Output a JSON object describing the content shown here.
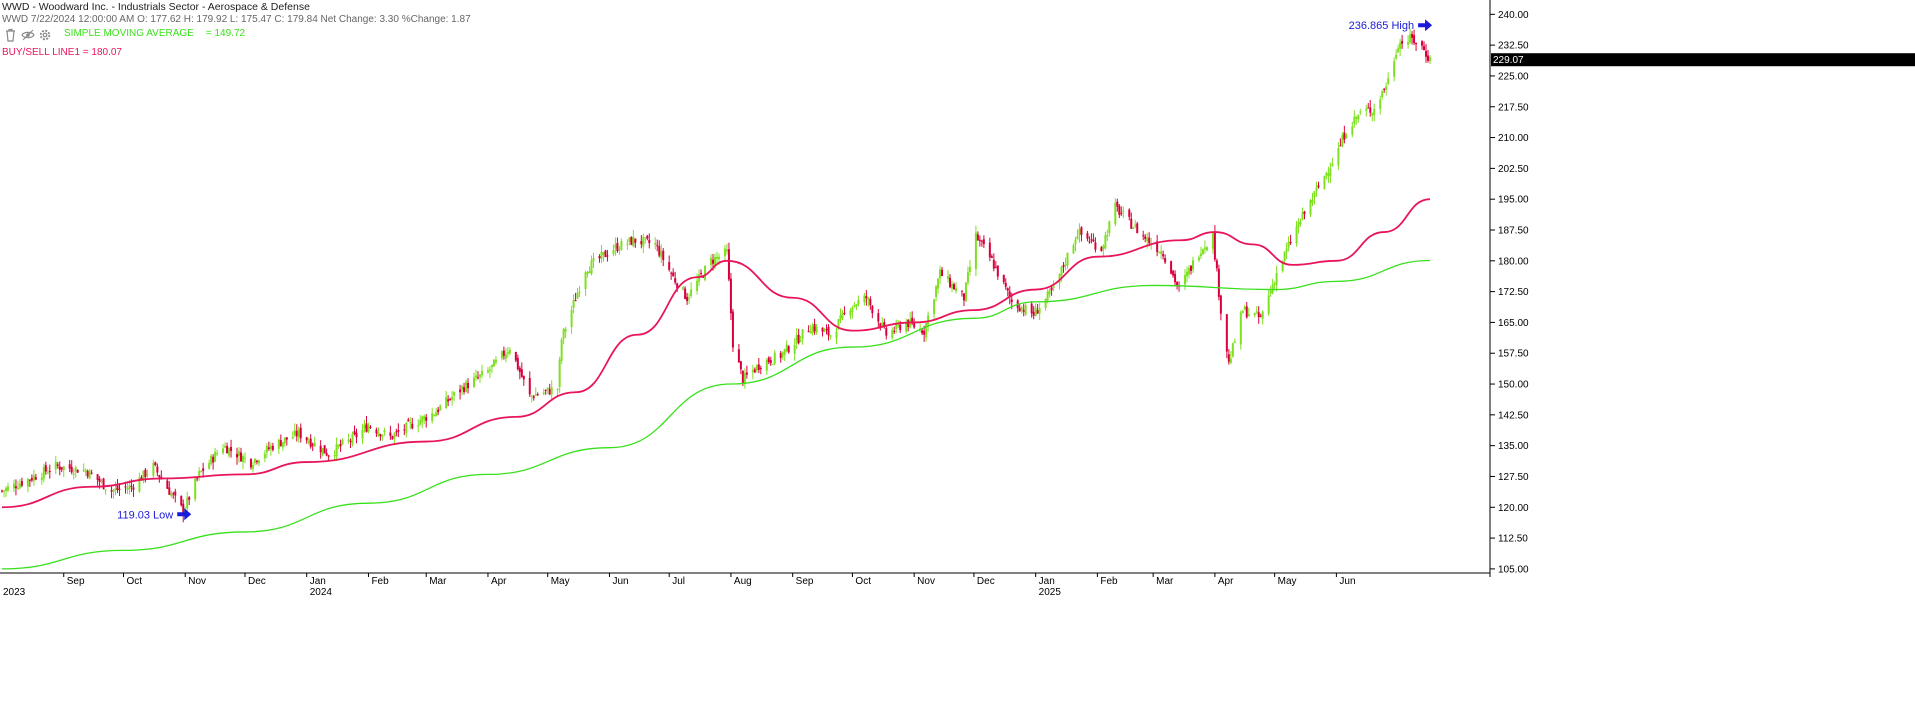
{
  "header": {
    "title": "WWD - Woodward Inc. - Industrials Sector - Aerospace & Defense",
    "ohlc_line": "WWD 7/22/2024 12:00:00 AM O: 177.62 H: 179.92 L: 175.47 C: 179.84 Net Change: 3.30  %Change: 1.87",
    "sma_label": "SIMPLE MOVING AVERAGE",
    "sma_value": "= 149.72",
    "buysell_label": "BUY/SELL LINE1 = 180.07"
  },
  "toolbar": {
    "icons": [
      "trash-icon",
      "eye-icon",
      "gear-icon"
    ]
  },
  "colors": {
    "up": "#7fe023",
    "down": "#d8003c",
    "sma_long": "#37e01b",
    "buysell": "#e8155a",
    "annotation": "#1a1ad8",
    "price_tag_bg": "#000000",
    "price_tag_fg": "#ffffff"
  },
  "chart_data": {
    "type": "candlestick",
    "ylim": [
      104,
      243
    ],
    "y_ticks": [
      "240.00",
      "232.50",
      "225.00",
      "217.50",
      "210.00",
      "202.50",
      "195.00",
      "187.50",
      "180.00",
      "172.50",
      "165.00",
      "157.50",
      "150.00",
      "142.50",
      "135.00",
      "127.50",
      "120.00",
      "112.50",
      "105.00"
    ],
    "x_ticks": [
      {
        "label": "Sep",
        "date": "2023-09-01"
      },
      {
        "label": "Oct",
        "date": "2023-10-01"
      },
      {
        "label": "Nov",
        "date": "2023-11-01"
      },
      {
        "label": "Dec",
        "date": "2023-12-01"
      },
      {
        "label": "Jan",
        "date": "2024-01-01"
      },
      {
        "label": "Feb",
        "date": "2024-02-01"
      },
      {
        "label": "Mar",
        "date": "2024-03-01"
      },
      {
        "label": "Apr",
        "date": "2024-04-01"
      },
      {
        "label": "May",
        "date": "2024-05-01"
      },
      {
        "label": "Jun",
        "date": "2024-06-01"
      },
      {
        "label": "Jul",
        "date": "2024-07-01"
      },
      {
        "label": "Aug",
        "date": "2024-08-01"
      },
      {
        "label": "Sep",
        "date": "2024-09-01"
      },
      {
        "label": "Oct",
        "date": "2024-10-01"
      },
      {
        "label": "Nov",
        "date": "2024-11-01"
      },
      {
        "label": "Dec",
        "date": "2024-12-01"
      },
      {
        "label": "Jan",
        "date": "2025-01-01"
      },
      {
        "label": "Feb",
        "date": "2025-02-01"
      },
      {
        "label": "Mar",
        "date": "2025-03-01"
      },
      {
        "label": "Apr",
        "date": "2025-04-01"
      },
      {
        "label": "May",
        "date": "2025-05-01"
      },
      {
        "label": "Jun",
        "date": "2025-06-01"
      }
    ],
    "year_labels": [
      {
        "label": "2023",
        "date": "2023-08-01"
      },
      {
        "label": "2024",
        "date": "2024-01-01"
      },
      {
        "label": "2025",
        "date": "2025-01-01"
      }
    ],
    "x_range": [
      "2023-08-01",
      "2025-07-18"
    ],
    "price_keypoints": [
      [
        "2023-08-01",
        124
      ],
      [
        "2023-08-15",
        127
      ],
      [
        "2023-08-28",
        130
      ],
      [
        "2023-09-12",
        129
      ],
      [
        "2023-09-25",
        124
      ],
      [
        "2023-10-05",
        125
      ],
      [
        "2023-10-16",
        130
      ],
      [
        "2023-10-24",
        124
      ],
      [
        "2023-10-31",
        119.03
      ],
      [
        "2023-11-08",
        128
      ],
      [
        "2023-11-20",
        135
      ],
      [
        "2023-12-04",
        131
      ],
      [
        "2023-12-15",
        135
      ],
      [
        "2023-12-28",
        138
      ],
      [
        "2024-01-12",
        133
      ],
      [
        "2024-01-25",
        137
      ],
      [
        "2024-02-01",
        140
      ],
      [
        "2024-02-12",
        137
      ],
      [
        "2024-02-22",
        140
      ],
      [
        "2024-03-05",
        143
      ],
      [
        "2024-03-19",
        149
      ],
      [
        "2024-04-01",
        153
      ],
      [
        "2024-04-12",
        159
      ],
      [
        "2024-04-22",
        147
      ],
      [
        "2024-05-06",
        149
      ],
      [
        "2024-05-08",
        161
      ],
      [
        "2024-05-20",
        178
      ],
      [
        "2024-06-03",
        183
      ],
      [
        "2024-06-13",
        185
      ],
      [
        "2024-06-24",
        184
      ],
      [
        "2024-07-03",
        176
      ],
      [
        "2024-07-10",
        171
      ],
      [
        "2024-07-22",
        180
      ],
      [
        "2024-07-30",
        182
      ],
      [
        "2024-08-02",
        160
      ],
      [
        "2024-08-07",
        151
      ],
      [
        "2024-08-16",
        155
      ],
      [
        "2024-08-26",
        157
      ],
      [
        "2024-09-10",
        164
      ],
      [
        "2024-09-20",
        162
      ],
      [
        "2024-09-30",
        169
      ],
      [
        "2024-10-08",
        171
      ],
      [
        "2024-10-18",
        162
      ],
      [
        "2024-10-28",
        165
      ],
      [
        "2024-11-06",
        163
      ],
      [
        "2024-11-14",
        177
      ],
      [
        "2024-11-26",
        171
      ],
      [
        "2024-12-02",
        186
      ],
      [
        "2024-12-10",
        180
      ],
      [
        "2024-12-20",
        170
      ],
      [
        "2024-12-31",
        167
      ],
      [
        "2025-01-10",
        173
      ],
      [
        "2025-01-22",
        187
      ],
      [
        "2025-02-03",
        183
      ],
      [
        "2025-02-10",
        193
      ],
      [
        "2025-02-24",
        186
      ],
      [
        "2025-03-06",
        182
      ],
      [
        "2025-03-14",
        173
      ],
      [
        "2025-03-25",
        183
      ],
      [
        "2025-03-31",
        186
      ],
      [
        "2025-04-04",
        168
      ],
      [
        "2025-04-08",
        155
      ],
      [
        "2025-04-15",
        168
      ],
      [
        "2025-04-24",
        166
      ],
      [
        "2025-05-02",
        177
      ],
      [
        "2025-05-12",
        188
      ],
      [
        "2025-05-22",
        197
      ],
      [
        "2025-06-02",
        207
      ],
      [
        "2025-06-06",
        212
      ],
      [
        "2025-06-13",
        216
      ],
      [
        "2025-06-20",
        217
      ],
      [
        "2025-06-27",
        224
      ],
      [
        "2025-07-02",
        233
      ],
      [
        "2025-07-09",
        234
      ],
      [
        "2025-07-14",
        232
      ],
      [
        "2025-07-18",
        229
      ]
    ],
    "series": [
      {
        "name": "SIMPLE MOVING AVERAGE",
        "points": [
          [
            "2023-08-01",
            105
          ],
          [
            "2023-10-01",
            109.5
          ],
          [
            "2023-12-01",
            114
          ],
          [
            "2024-02-01",
            121
          ],
          [
            "2024-04-01",
            128
          ],
          [
            "2024-06-01",
            134.5
          ],
          [
            "2024-08-01",
            150
          ],
          [
            "2024-10-01",
            159
          ],
          [
            "2024-12-01",
            166
          ],
          [
            "2025-01-01",
            170
          ],
          [
            "2025-03-01",
            174
          ],
          [
            "2025-05-01",
            173
          ],
          [
            "2025-06-01",
            175
          ],
          [
            "2025-07-18",
            180.07
          ]
        ]
      },
      {
        "name": "BUY/SELL LINE1",
        "points": [
          [
            "2023-08-01",
            120
          ],
          [
            "2023-09-15",
            125
          ],
          [
            "2023-10-20",
            127
          ],
          [
            "2023-12-01",
            128
          ],
          [
            "2024-01-01",
            131
          ],
          [
            "2024-03-01",
            136
          ],
          [
            "2024-04-15",
            142
          ],
          [
            "2024-05-15",
            148
          ],
          [
            "2024-06-15",
            162
          ],
          [
            "2024-07-15",
            176
          ],
          [
            "2024-07-30",
            180
          ],
          [
            "2024-09-01",
            171
          ],
          [
            "2024-10-01",
            163
          ],
          [
            "2024-11-01",
            165
          ],
          [
            "2024-12-01",
            168
          ],
          [
            "2025-01-01",
            173
          ],
          [
            "2025-02-01",
            181
          ],
          [
            "2025-03-15",
            185
          ],
          [
            "2025-04-01",
            187
          ],
          [
            "2025-04-20",
            184
          ],
          [
            "2025-05-10",
            179
          ],
          [
            "2025-06-01",
            180
          ],
          [
            "2025-06-25",
            187
          ],
          [
            "2025-07-18",
            195
          ]
        ]
      }
    ],
    "annotations": [
      {
        "label": "119.03 Low",
        "date": "2023-10-31",
        "price": 119.03
      },
      {
        "label": "236.865 High",
        "date": "2025-07-08",
        "price": 236.865
      }
    ],
    "last_price_label": "229.07",
    "last_price": 229.07
  }
}
